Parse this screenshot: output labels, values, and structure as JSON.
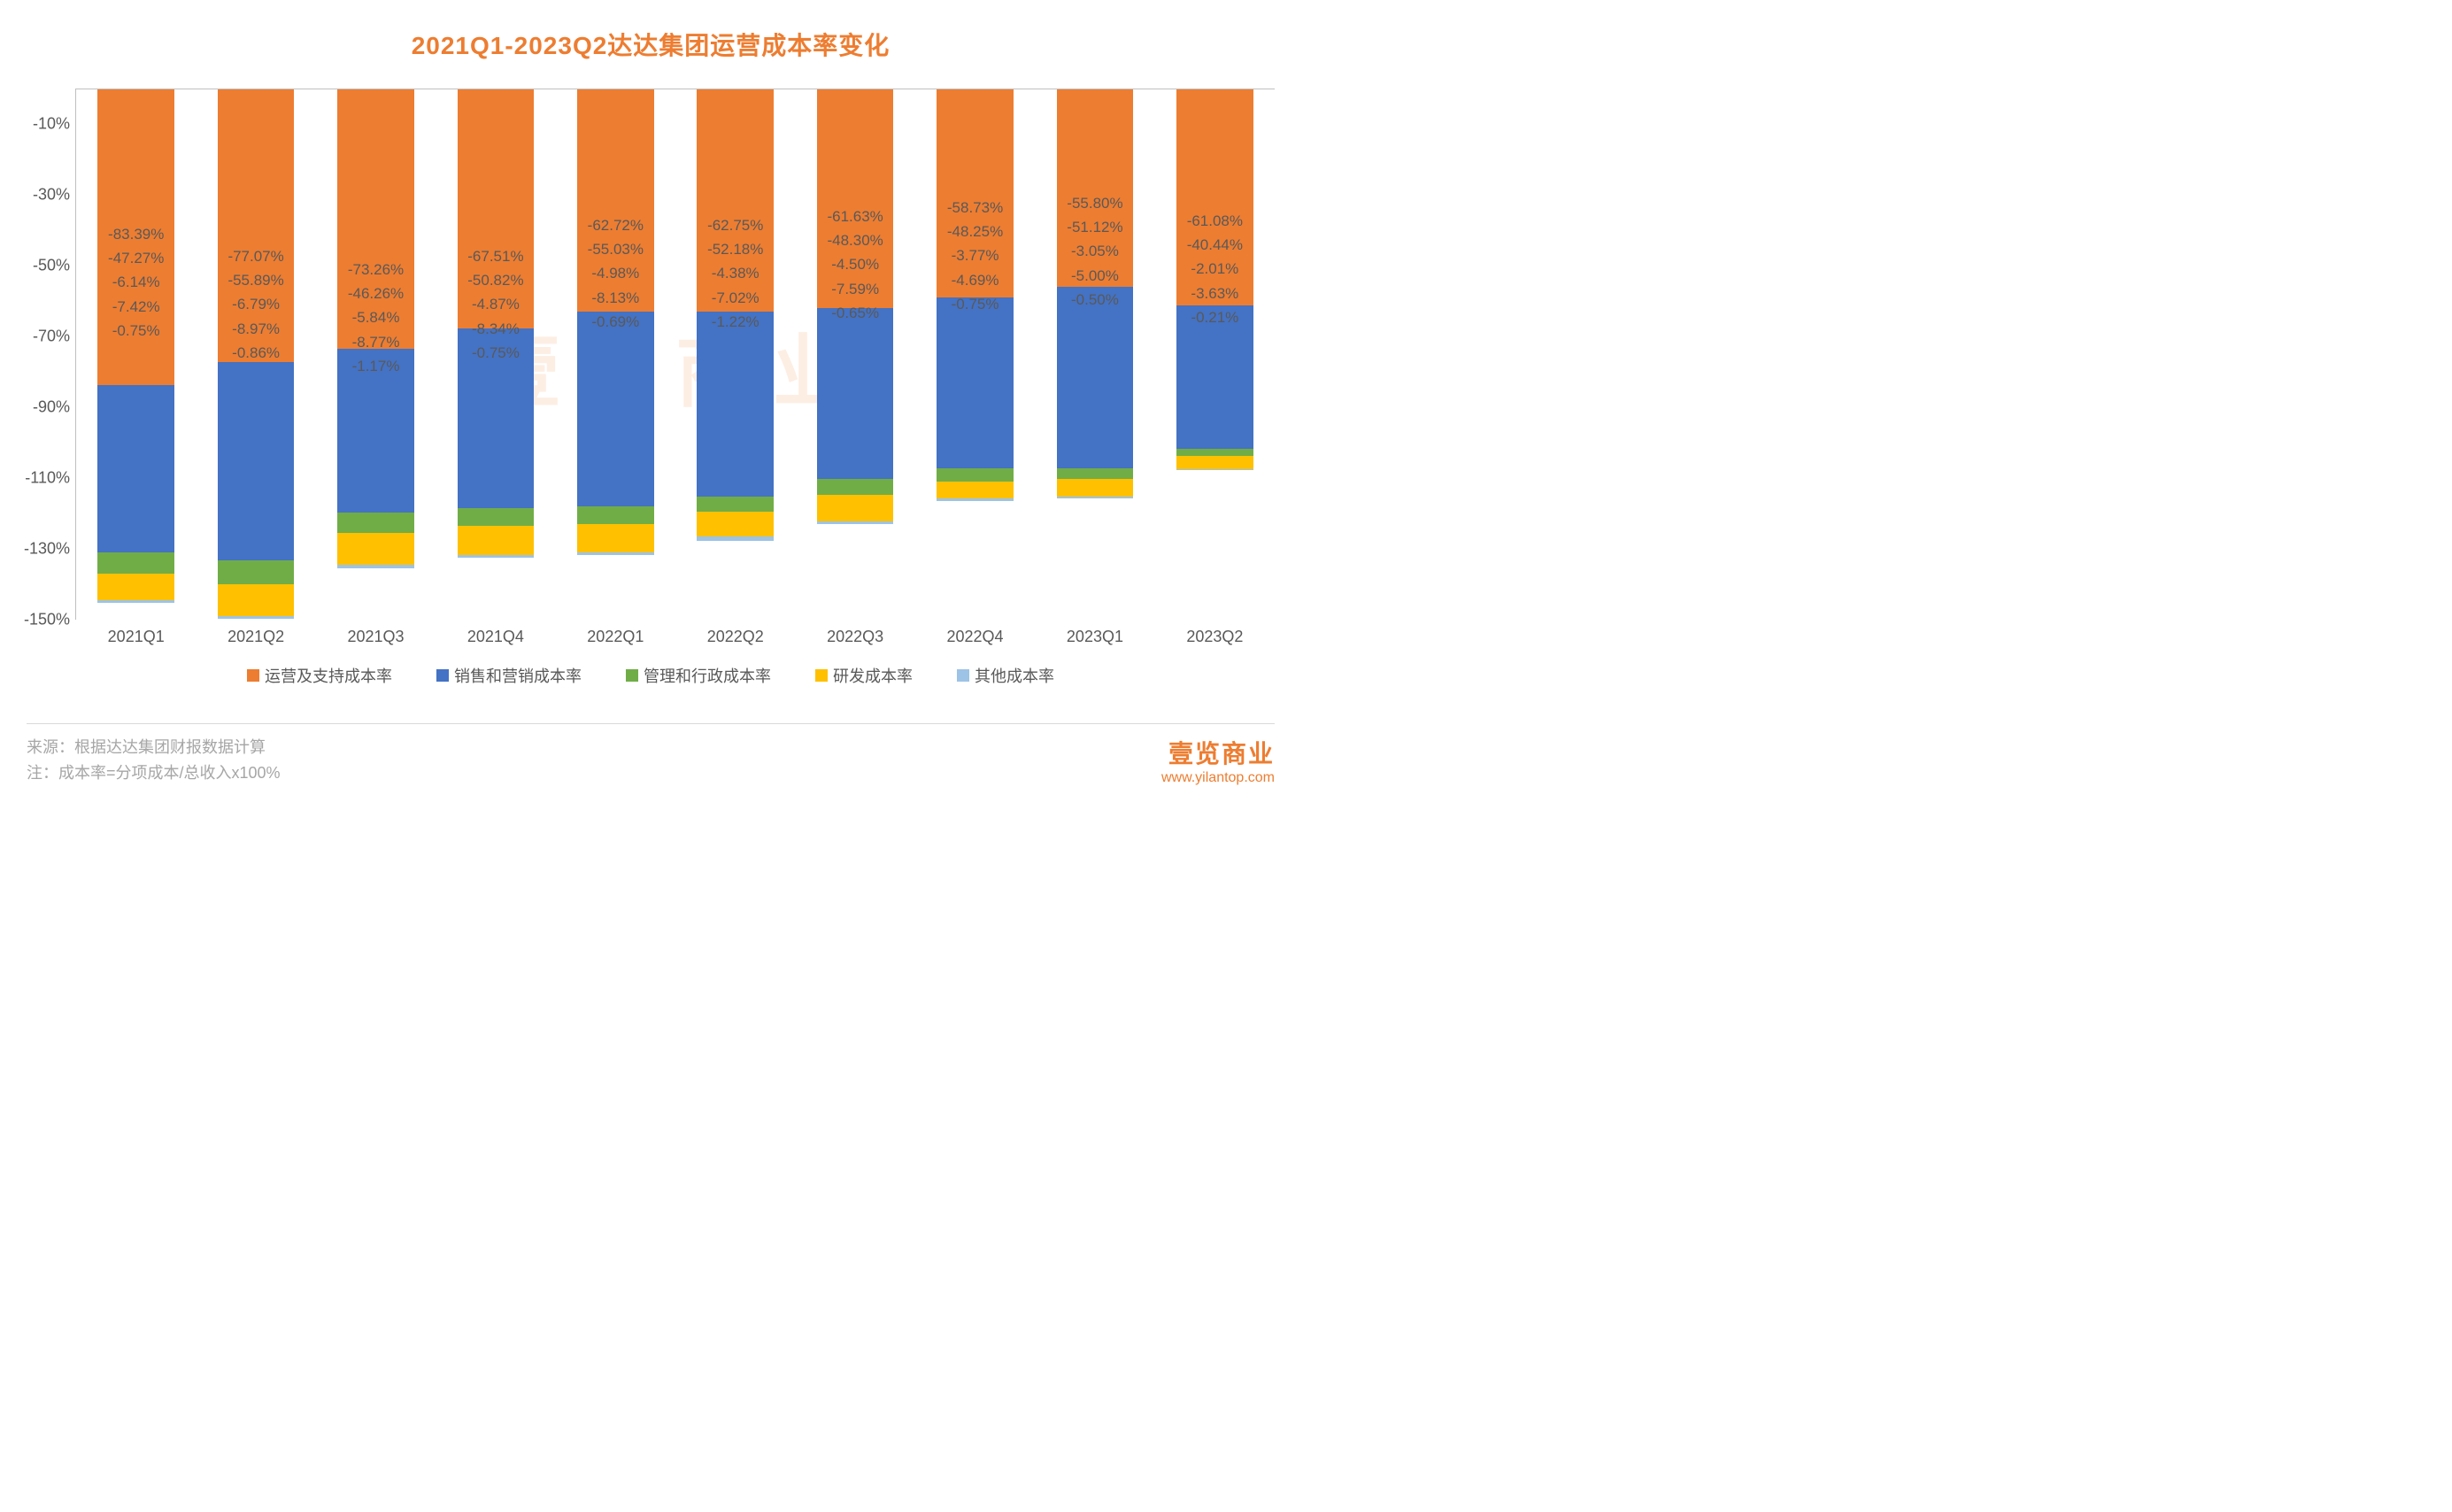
{
  "title": "2021Q1-2023Q2达达集团运营成本率变化",
  "chart": {
    "type": "stacked-bar",
    "y_axis": {
      "min": -150,
      "max": 0,
      "tick_step": 20,
      "label_suffix": "%",
      "ticks": [
        "-10%",
        "-30%",
        "-50%",
        "-70%",
        "-90%",
        "-110%",
        "-130%",
        "-150%"
      ]
    },
    "categories": [
      "2021Q1",
      "2021Q2",
      "2021Q3",
      "2021Q4",
      "2022Q1",
      "2022Q2",
      "2022Q3",
      "2022Q4",
      "2023Q1",
      "2023Q2"
    ],
    "series": [
      {
        "name": "运营及支持成本率",
        "color": "#ed7d31",
        "values": [
          -83.39,
          -77.07,
          -73.26,
          -67.51,
          -62.72,
          -62.75,
          -61.63,
          -58.73,
          -55.8,
          -61.08
        ]
      },
      {
        "name": "销售和营销成本率",
        "color": "#4472c4",
        "values": [
          -47.27,
          -55.89,
          -46.26,
          -50.82,
          -55.03,
          -52.18,
          -48.3,
          -48.25,
          -51.12,
          -40.44
        ]
      },
      {
        "name": "管理和行政成本率",
        "color": "#70ad47",
        "values": [
          -6.14,
          -6.79,
          -5.84,
          -4.87,
          -4.98,
          -4.38,
          -4.5,
          -3.77,
          -3.05,
          -2.01
        ]
      },
      {
        "name": "研发成本率",
        "color": "#ffc000",
        "values": [
          -7.42,
          -8.97,
          -8.77,
          -8.34,
          -8.13,
          -7.02,
          -7.59,
          -4.69,
          -5.0,
          -3.63
        ]
      },
      {
        "name": "其他成本率",
        "color": "#9dc3e6",
        "values": [
          -0.75,
          -0.86,
          -1.17,
          -0.75,
          -0.69,
          -1.22,
          -0.65,
          -0.75,
          -0.5,
          -0.21
        ]
      }
    ],
    "title_fontsize": 28,
    "title_color": "#ed7d31",
    "axis_font_color": "#595959",
    "label_fontsize": 18,
    "data_label_fontsize": 17,
    "data_label_color": "#595959",
    "axis_line_color": "#bfbfbf",
    "background_color": "#ffffff",
    "bar_width_ratio": 0.64
  },
  "footer": {
    "source_label": "来源：",
    "source_text": "根据达达集团财报数据计算",
    "note_label": "注：",
    "note_text": "成本率=分项成本/总收入x100%"
  },
  "brand": {
    "logo_text": "壹览商业",
    "url": "www.yilantop.com",
    "color": "#ed7d31"
  },
  "watermark": "壹览商业"
}
